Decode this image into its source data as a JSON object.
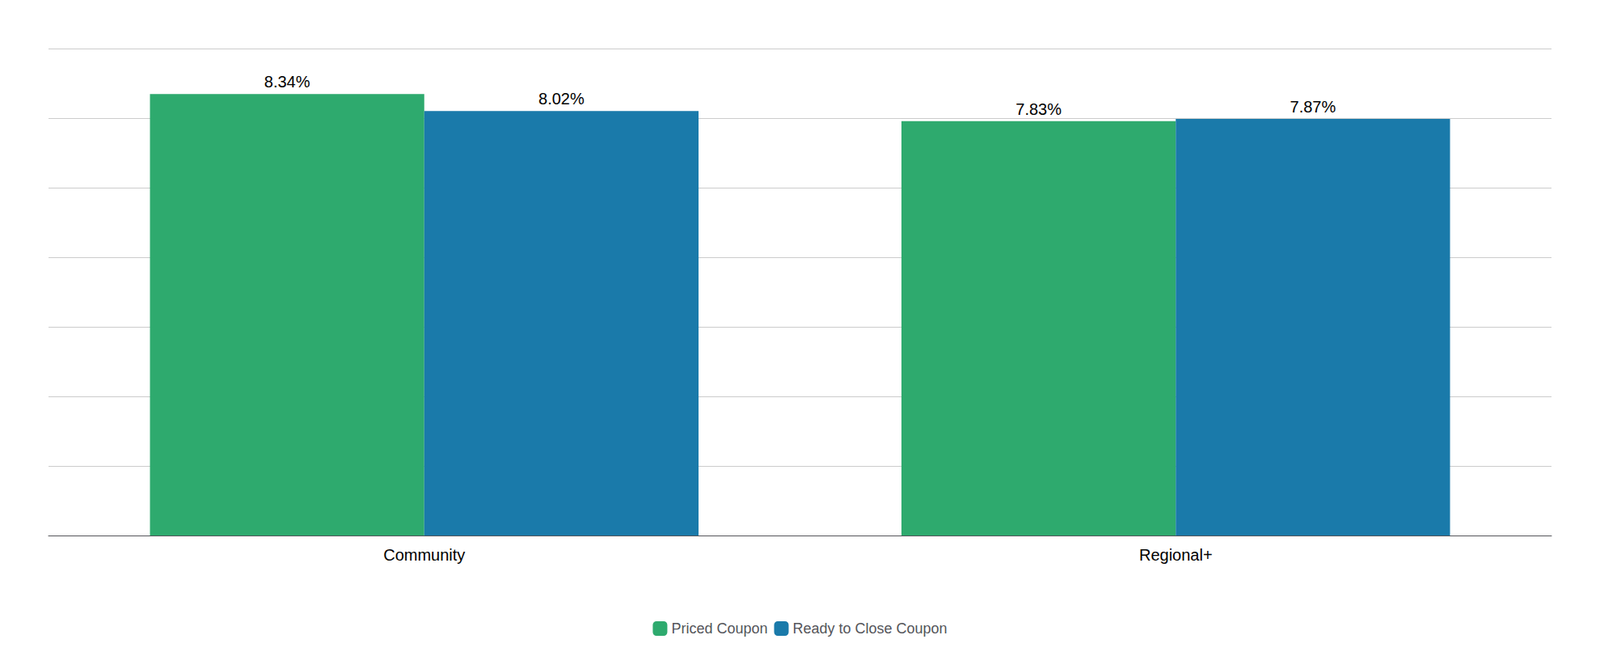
{
  "chart_data": {
    "type": "bar",
    "categories": [
      "Community",
      "Regional+"
    ],
    "series": [
      {
        "name": "Priced Coupon",
        "color": "#2eaa6e",
        "values": [
          8.34,
          7.83
        ],
        "value_labels": [
          "8.34%",
          "7.83%"
        ]
      },
      {
        "name": "Ready to Close Coupon",
        "color": "#1a7aaa",
        "values": [
          8.02,
          7.87
        ],
        "value_labels": [
          "8.02%",
          "7.87%"
        ]
      }
    ],
    "ylim": [
      0,
      9.2
    ],
    "yticks": [
      0,
      1.3142857142857143,
      2.6285714285714286,
      3.942857142857143,
      5.257142857142857,
      6.571428571428571,
      7.885714285714286,
      9.2
    ],
    "grid": true,
    "data_labels": true,
    "tick_labels": "x",
    "legend": "bottom"
  }
}
